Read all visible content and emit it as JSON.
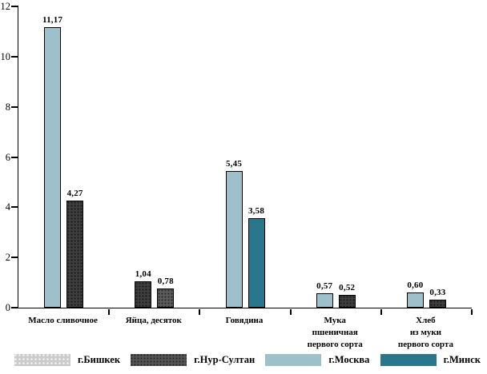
{
  "chart_data": {
    "type": "bar",
    "title": "",
    "xlabel": "",
    "ylabel": "",
    "ylim": [
      0,
      12
    ],
    "yticks": [
      0,
      2,
      4,
      6,
      8,
      10,
      12
    ],
    "grid": false,
    "legend_position": "bottom",
    "decimal_separator": ",",
    "colors": {
      "moscow_blue": "#9dc0ca",
      "minsk_teal": "#29768d",
      "nursultan_dark_gray": "#3f3f3f",
      "bishkek_bar_gray": "#5d5d5d",
      "bishkek_legend_gray": "#cbcbcb",
      "nursultan_legend_gray": "#555555",
      "axis_black": "#000000"
    },
    "legend": [
      {
        "label": "г.Бишкек",
        "fill": "#cbcbcb",
        "pattern": "dots-white"
      },
      {
        "label": "г.Нур-Султан",
        "fill": "#555555",
        "pattern": "dots-dark"
      },
      {
        "label": "г.Москва",
        "fill": "#9dc0ca",
        "pattern": "solid"
      },
      {
        "label": "г.Минск",
        "fill": "#29768d",
        "pattern": "solid"
      }
    ],
    "categories": [
      {
        "label_lines": [
          "Масло сливочное"
        ],
        "bars": [
          {
            "series": "г.Москва",
            "value": 11.17,
            "label": "11,17",
            "fill": "#9dc0ca",
            "pattern": "solid"
          },
          {
            "series": "г.Нур-Султан",
            "value": 4.27,
            "label": "4,27",
            "fill": "#3f3f3f",
            "pattern": "dots-dark"
          }
        ]
      },
      {
        "label_lines": [
          "Яйца, десяток"
        ],
        "bars": [
          {
            "series": "г.Нур-Султан",
            "value": 1.04,
            "label": "1,04",
            "fill": "#3f3f3f",
            "pattern": "dots-dark"
          },
          {
            "series": "г.Бишкек",
            "value": 0.78,
            "label": "0,78",
            "fill": "#5d5d5d",
            "pattern": "dots-dark"
          }
        ]
      },
      {
        "label_lines": [
          "Говядина"
        ],
        "bars": [
          {
            "series": "г.Москва",
            "value": 5.45,
            "label": "5,45",
            "fill": "#9dc0ca",
            "pattern": "solid"
          },
          {
            "series": "г.Минск",
            "value": 3.58,
            "label": "3,58",
            "fill": "#29768d",
            "pattern": "solid"
          }
        ]
      },
      {
        "label_lines": [
          "Мука",
          "пшеничная",
          "первого сорта"
        ],
        "bars": [
          {
            "series": "г.Москва",
            "value": 0.57,
            "label": "0,57",
            "fill": "#9dc0ca",
            "pattern": "solid"
          },
          {
            "series": "г.Нур-Султан",
            "value": 0.52,
            "label": "0,52",
            "fill": "#3f3f3f",
            "pattern": "dots-dark"
          }
        ]
      },
      {
        "label_lines": [
          "Хлеб",
          "из муки",
          "первого сорта"
        ],
        "bars": [
          {
            "series": "г.Москва",
            "value": 0.6,
            "label": "0,60",
            "fill": "#9dc0ca",
            "pattern": "solid"
          },
          {
            "series": "г.Нур-Султан",
            "value": 0.33,
            "label": "0,33",
            "fill": "#3f3f3f",
            "pattern": "dots-dark"
          }
        ]
      }
    ]
  }
}
